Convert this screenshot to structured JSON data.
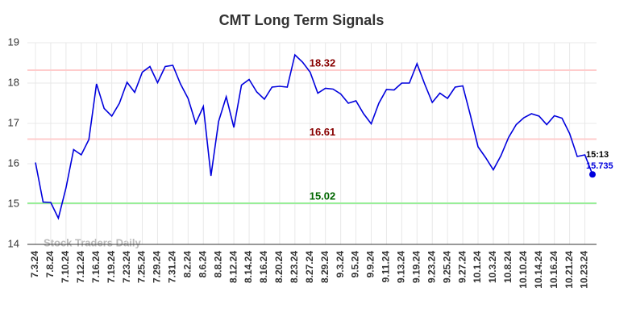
{
  "chart_data": {
    "type": "line",
    "title": "CMT Long Term Signals",
    "categories": [
      "7.3.24",
      null,
      "7.8.24",
      null,
      "7.10.24",
      null,
      "7.12.24",
      null,
      "7.16.24",
      null,
      "7.19.24",
      null,
      "7.23.24",
      null,
      "7.25.24",
      null,
      "7.29.24",
      null,
      "7.31.24",
      null,
      "8.2.24",
      null,
      "8.6.24",
      null,
      "8.8.24",
      null,
      "8.12.24",
      null,
      "8.14.24",
      null,
      "8.16.24",
      null,
      "8.20.24",
      null,
      "8.23.24",
      null,
      "8.27.24",
      null,
      "8.29.24",
      null,
      "9.3.24",
      null,
      "9.5.24",
      null,
      "9.9.24",
      null,
      "9.11.24",
      null,
      "9.13.24",
      null,
      "9.19.24",
      null,
      "9.23.24",
      null,
      "9.25.24",
      null,
      "9.27.24",
      null,
      "10.1.24",
      null,
      "10.3.24",
      null,
      "10.8.24",
      null,
      "10.10.24",
      null,
      "10.14.24",
      null,
      "10.16.24",
      null,
      "10.21.24",
      null,
      "10.23.24",
      null
    ],
    "values": [
      16.03,
      15.05,
      15.04,
      14.65,
      15.4,
      16.35,
      16.22,
      16.6,
      17.98,
      17.37,
      17.18,
      17.5,
      18.02,
      17.77,
      18.27,
      18.41,
      18.01,
      18.41,
      18.44,
      17.98,
      17.62,
      17.0,
      17.42,
      15.7,
      17.05,
      17.66,
      16.9,
      17.95,
      18.09,
      17.78,
      17.6,
      17.9,
      17.92,
      17.9,
      18.7,
      18.52,
      18.27,
      17.75,
      17.87,
      17.85,
      17.73,
      17.5,
      17.56,
      17.24,
      16.99,
      17.5,
      17.84,
      17.83,
      18.0,
      18.0,
      18.48,
      17.98,
      17.52,
      17.75,
      17.62,
      17.9,
      17.93,
      17.2,
      16.42,
      16.15,
      15.85,
      16.2,
      16.65,
      16.97,
      17.14,
      17.24,
      17.18,
      16.97,
      17.19,
      17.13,
      16.75,
      16.18,
      16.22,
      15.735
    ],
    "color": "#0000dd",
    "ylim": [
      14,
      19
    ],
    "yticks": [
      14,
      15,
      16,
      17,
      18,
      19
    ],
    "grid": true,
    "hlines": [
      {
        "value": 18.32,
        "color": "#ffcccc",
        "label_color": "#880000"
      },
      {
        "value": 16.61,
        "color": "#ffcccc",
        "label_color": "#880000"
      },
      {
        "value": 15.02,
        "color": "#99ee99",
        "label_color": "#006600"
      }
    ],
    "time_label": "15:13",
    "watermark": "Stock Traders Daily"
  }
}
